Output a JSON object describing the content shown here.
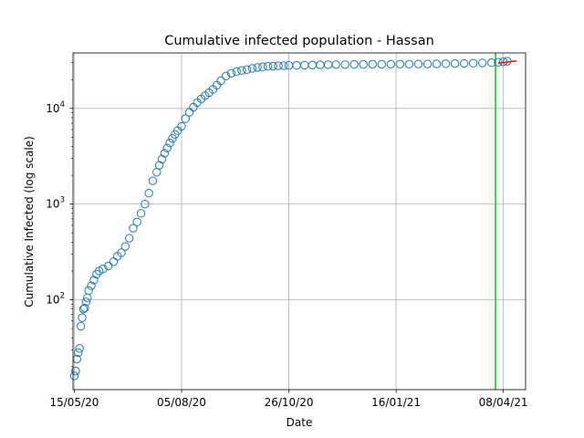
{
  "chart_data": {
    "type": "scatter",
    "title": "Cumulative infected population - Hassan",
    "xlabel": "Date",
    "ylabel": "Cumulative Infected (log scale)",
    "y_scale": "log",
    "grid": true,
    "x_range": [
      "2020-05-14",
      "2021-04-25"
    ],
    "y_range": [
      11.5,
      38000
    ],
    "x_ticks": [
      {
        "date": "2020-05-15",
        "label": "15/05/20"
      },
      {
        "date": "2020-08-05",
        "label": "05/08/20"
      },
      {
        "date": "2020-10-26",
        "label": "26/10/20"
      },
      {
        "date": "2021-01-16",
        "label": "16/01/21"
      },
      {
        "date": "2021-04-08",
        "label": "08/04/21"
      }
    ],
    "y_ticks": [
      {
        "value": 100,
        "base": "10",
        "exp": "2"
      },
      {
        "value": 1000,
        "base": "10",
        "exp": "3"
      },
      {
        "value": 10000,
        "base": "10",
        "exp": "4"
      }
    ],
    "series": [
      {
        "marker": "open-circle",
        "color": "#1f77b4",
        "x": [
          "2020-05-15",
          "2020-05-16",
          "2020-05-17",
          "2020-05-18",
          "2020-05-19",
          "2020-05-20",
          "2020-05-21",
          "2020-05-22",
          "2020-05-23",
          "2020-05-24",
          "2020-05-25",
          "2020-05-26",
          "2020-05-28",
          "2020-05-30",
          "2020-06-01",
          "2020-06-03",
          "2020-06-06",
          "2020-06-10",
          "2020-06-14",
          "2020-06-17",
          "2020-06-20",
          "2020-06-23",
          "2020-06-26",
          "2020-06-29",
          "2020-07-02",
          "2020-07-05",
          "2020-07-08",
          "2020-07-11",
          "2020-07-14",
          "2020-07-17",
          "2020-07-19",
          "2020-07-21",
          "2020-07-23",
          "2020-07-25",
          "2020-07-27",
          "2020-07-29",
          "2020-07-31",
          "2020-08-02",
          "2020-08-05",
          "2020-08-08",
          "2020-08-11",
          "2020-08-14",
          "2020-08-17",
          "2020-08-20",
          "2020-08-23",
          "2020-08-26",
          "2020-08-29",
          "2020-09-01",
          "2020-09-04",
          "2020-09-08",
          "2020-09-12",
          "2020-09-16",
          "2020-09-20",
          "2020-09-24",
          "2020-09-28",
          "2020-10-02",
          "2020-10-06",
          "2020-10-10",
          "2020-10-14",
          "2020-10-18",
          "2020-10-22",
          "2020-10-26",
          "2020-11-01",
          "2020-11-07",
          "2020-11-13",
          "2020-11-19",
          "2020-11-25",
          "2020-12-01",
          "2020-12-08",
          "2020-12-15",
          "2020-12-22",
          "2020-12-29",
          "2021-01-05",
          "2021-01-12",
          "2021-01-19",
          "2021-01-26",
          "2021-02-02",
          "2021-02-09",
          "2021-02-16",
          "2021-02-23",
          "2021-03-02",
          "2021-03-09",
          "2021-03-16",
          "2021-03-23",
          "2021-03-30",
          "2021-04-04",
          "2021-04-08",
          "2021-04-11"
        ],
        "y": [
          16,
          18,
          24,
          28,
          31,
          53,
          65,
          80,
          82,
          95,
          105,
          125,
          140,
          160,
          185,
          200,
          210,
          225,
          250,
          285,
          310,
          360,
          440,
          560,
          650,
          800,
          1000,
          1300,
          1750,
          2150,
          2550,
          2950,
          3400,
          3850,
          4350,
          4850,
          5350,
          5850,
          6500,
          7800,
          9100,
          10300,
          11500,
          12600,
          13600,
          14600,
          15800,
          17500,
          19500,
          21800,
          23300,
          24300,
          24900,
          25500,
          26200,
          26800,
          27200,
          27500,
          27700,
          27900,
          28000,
          28100,
          28200,
          28300,
          28400,
          28500,
          28600,
          28700,
          28700,
          28800,
          28800,
          28900,
          28900,
          29000,
          29000,
          29000,
          29100,
          29100,
          29200,
          29300,
          29400,
          29500,
          29700,
          29900,
          30100,
          30400,
          30700,
          31100
        ]
      },
      {
        "marker": "line",
        "color": "#ff0000",
        "x": [
          "2021-04-04",
          "2021-04-11",
          "2021-04-18"
        ],
        "y": [
          29800,
          30500,
          31300
        ]
      }
    ],
    "vertical_lines": [
      {
        "date": "2021-04-02",
        "color": "#00cc00"
      }
    ]
  }
}
